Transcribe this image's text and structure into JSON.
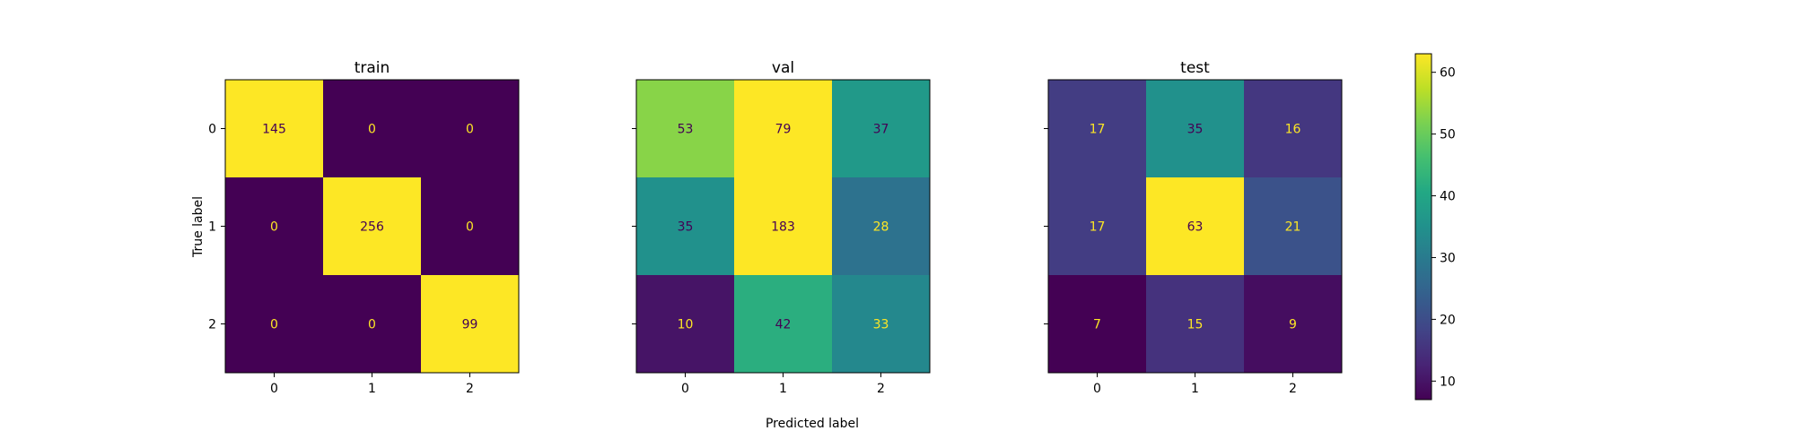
{
  "chart_data": {
    "type": "heatmap",
    "xlabel": "Predicted label",
    "ylabel": "True label",
    "classes": [
      "0",
      "1",
      "2"
    ],
    "colormap": "viridis",
    "color_range": [
      7,
      63
    ],
    "panels": [
      {
        "title": "train",
        "matrix": [
          [
            145,
            0,
            0
          ],
          [
            0,
            256,
            0
          ],
          [
            0,
            0,
            99
          ]
        ]
      },
      {
        "title": "val",
        "matrix": [
          [
            53,
            79,
            37
          ],
          [
            35,
            183,
            28
          ],
          [
            10,
            42,
            33
          ]
        ]
      },
      {
        "title": "test",
        "matrix": [
          [
            17,
            35,
            16
          ],
          [
            17,
            63,
            21
          ],
          [
            7,
            15,
            9
          ]
        ]
      }
    ],
    "colorbar": {
      "ticks": [
        10,
        20,
        30,
        40,
        50,
        60
      ]
    },
    "grid": false
  }
}
